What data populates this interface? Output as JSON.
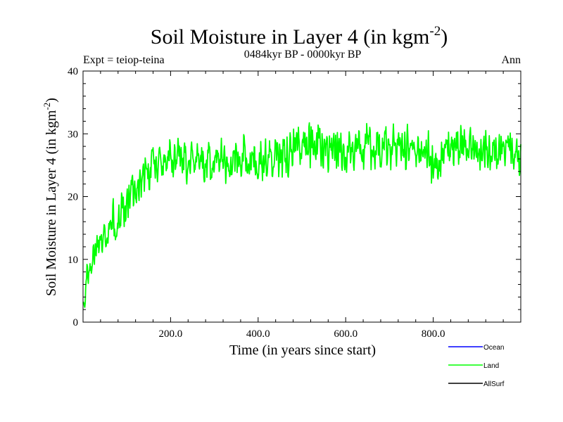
{
  "chart_data": {
    "type": "line",
    "title": "Soil Moisture in Layer 4 (in kgm",
    "title_sup": "-2",
    "title_close": ")",
    "subtitle": "0484kyr BP - 0000kyr BP",
    "expt_label": "Expt = teiop-teina",
    "season_label": "Ann",
    "xlabel": "Time (in years since start)",
    "ylabel": "Soil Moisture in Layer 4 (in kgm",
    "ylabel_sup": "-2",
    "ylabel_close": ")",
    "xlim": [
      0,
      1000
    ],
    "ylim": [
      0,
      40
    ],
    "x_ticks": [
      {
        "value": 200,
        "label": "200.0"
      },
      {
        "value": 400,
        "label": "400.0"
      },
      {
        "value": 600,
        "label": "600.0"
      },
      {
        "value": 800,
        "label": "800.0"
      }
    ],
    "y_ticks": [
      {
        "value": 0,
        "label": "0"
      },
      {
        "value": 10,
        "label": "10"
      },
      {
        "value": 20,
        "label": "20"
      },
      {
        "value": 30,
        "label": "30"
      },
      {
        "value": 40,
        "label": "40"
      }
    ],
    "legend": [
      {
        "name": "Ocean",
        "color": "#0000ff"
      },
      {
        "name": "Land",
        "color": "#00ff00"
      },
      {
        "name": "AllSurf",
        "color": "#000000"
      }
    ],
    "series": [
      {
        "name": "Land",
        "color": "#00ff00",
        "x": [
          0,
          10,
          20,
          30,
          40,
          50,
          60,
          70,
          80,
          90,
          100,
          110,
          120,
          130,
          140,
          150,
          160,
          170,
          180,
          190,
          200,
          210,
          220,
          230,
          240,
          250,
          260,
          270,
          280,
          290,
          300,
          310,
          320,
          330,
          340,
          350,
          360,
          370,
          380,
          390,
          400,
          410,
          420,
          430,
          440,
          450,
          460,
          470,
          480,
          490,
          500,
          510,
          520,
          530,
          540,
          550,
          560,
          570,
          580,
          590,
          600,
          610,
          620,
          630,
          640,
          650,
          660,
          670,
          680,
          690,
          700,
          710,
          720,
          730,
          740,
          750,
          760,
          770,
          780,
          790,
          800,
          810,
          820,
          830,
          840,
          850,
          860,
          870,
          880,
          890,
          900,
          910,
          920,
          930,
          940,
          950,
          960,
          970,
          980,
          990,
          1000
        ],
        "values": [
          3,
          8,
          10,
          12,
          13,
          14,
          15,
          16,
          17,
          18,
          19,
          20,
          21,
          22,
          23,
          24,
          24.5,
          25,
          25.5,
          26,
          26,
          26.5,
          26,
          26,
          25,
          26,
          26,
          25,
          25,
          26,
          24,
          25,
          26,
          26,
          26,
          27,
          26,
          26,
          25,
          26,
          26,
          26,
          26,
          27,
          27,
          27,
          27,
          27,
          28,
          28,
          28,
          28,
          28,
          28,
          28,
          28,
          27,
          28,
          27,
          27,
          27,
          27,
          27,
          28,
          27,
          28,
          28,
          27,
          27,
          28,
          28,
          28,
          28,
          28,
          28,
          27,
          27,
          27,
          27,
          27,
          25,
          25,
          26,
          27,
          27,
          28,
          28,
          29,
          28,
          28,
          28,
          28,
          27,
          28,
          27,
          28,
          28,
          28,
          28,
          27,
          27
        ],
        "noise_amplitude": 4
      }
    ]
  }
}
